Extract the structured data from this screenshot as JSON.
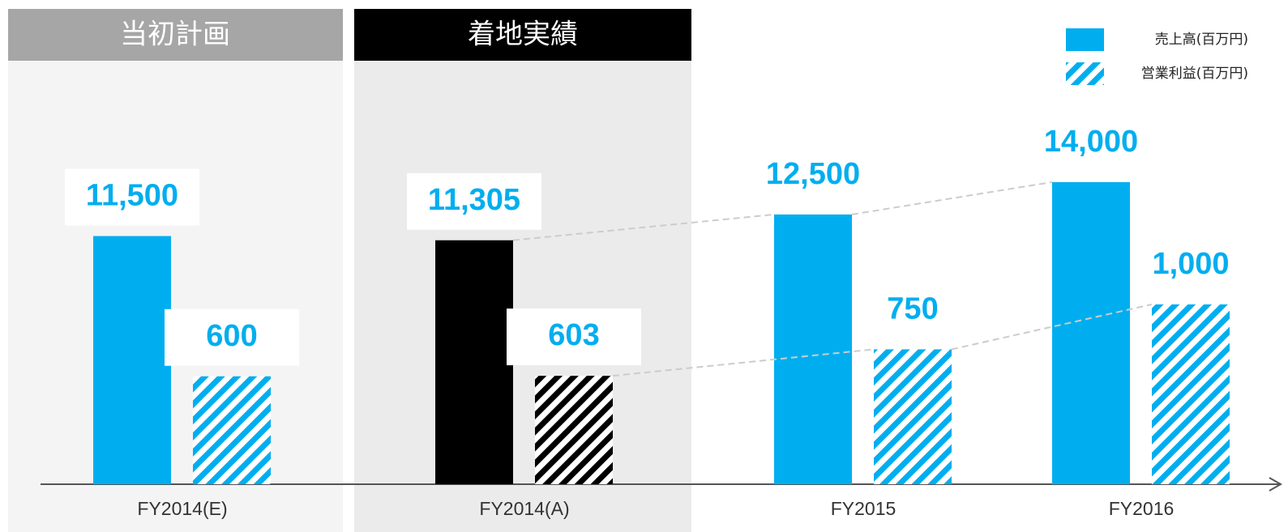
{
  "chart_data": {
    "type": "bar",
    "panels": [
      "当初計画",
      "着地実績"
    ],
    "categories": [
      "FY2014(E)",
      "FY2014(A)",
      "FY2015",
      "FY2016"
    ],
    "series": [
      {
        "name": "売上高(百万円)",
        "color": "#00aeef",
        "colors": [
          "#00aeef",
          "#000000",
          "#00aeef",
          "#00aeef"
        ],
        "pattern": "solid",
        "values": [
          11500,
          11305,
          12500,
          14000
        ],
        "value_labels": [
          "11,500",
          "11,305",
          "12,500",
          "14,000"
        ]
      },
      {
        "name": "営業利益(百万円)",
        "color": "#00aeef",
        "colors": [
          "#00aeef",
          "#000000",
          "#00aeef",
          "#00aeef"
        ],
        "pattern": "hatch",
        "axis": "y2",
        "values": [
          600,
          603,
          750,
          1000
        ],
        "value_labels": [
          "600",
          "603",
          "750",
          "1,000"
        ]
      }
    ],
    "ylim": [
      0,
      20000
    ],
    "y2lim": [
      0,
      2400
    ]
  }
}
